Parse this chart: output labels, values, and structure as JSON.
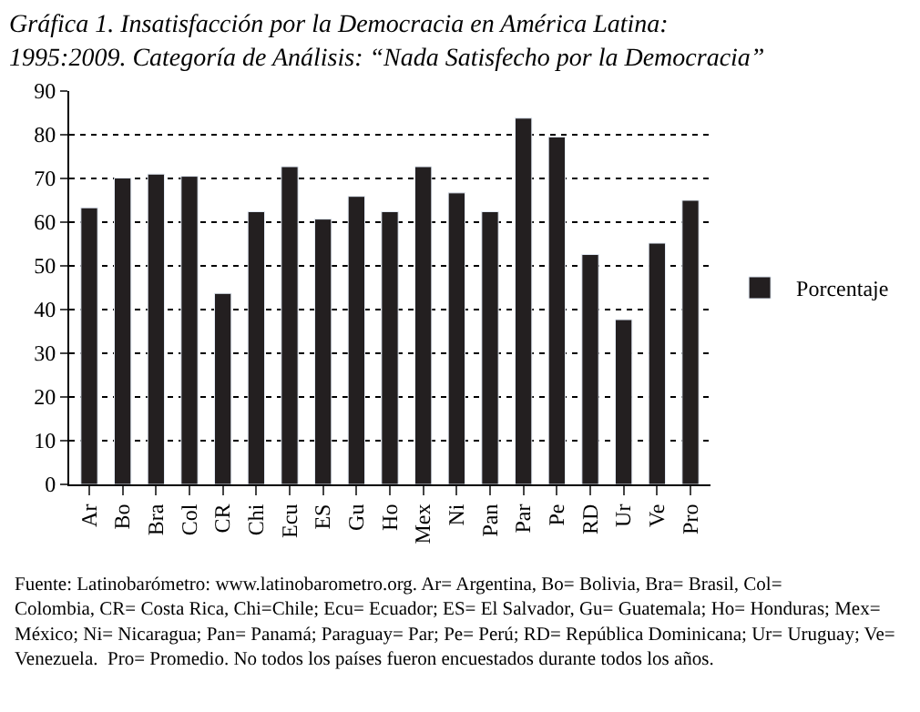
{
  "chart_data": {
    "type": "bar",
    "title": "Gráfica 1. Insatisfacción por la Democracia en América Latina: 1995:2009. Categoría de Análisis: “Nada Satisfecho por la Democracia”",
    "categories": [
      "Ar",
      "Bo",
      "Bra",
      "Col",
      "CR",
      "Chi",
      "Ecu",
      "ES",
      "Gu",
      "Ho",
      "Mex",
      "Ni",
      "Pan",
      "Par",
      "Pe",
      "RD",
      "Ur",
      "Ve",
      "Pro"
    ],
    "series": [
      {
        "name": "Porcentaje",
        "color": "#231f20",
        "values": [
          63.3,
          70.1,
          71,
          70.5,
          43.7,
          62.4,
          72.7,
          60.7,
          65.9,
          62.4,
          72.7,
          66.7,
          62.4,
          83.8,
          79.5,
          52.6,
          37.7,
          55.2,
          65.0
        ]
      }
    ],
    "ylim": [
      0,
      90
    ],
    "yticks": [
      0,
      10,
      20,
      30,
      40,
      50,
      60,
      70,
      80,
      90
    ],
    "grid": "y",
    "legend": "right",
    "annotations": [
      "Fuente: Latinobarómetro: www.latinobarometro.org. Ar= Argentina, Bo= Bolivia, Bra= Brasil, Col= Colombia, CR= Costa Rica, Chi=Chile; Ecu= Ecuador; ES= El Salvador, Gu= Guatemala; Ho= Honduras; Mex= México; Ni= Nicaragua; Pan= Panamá; Paraguay= Par; Pe= Perú; RD= República Dominicana; Ur= Uruguay; Ve= Venezuela.  Pro= Promedio. No todos los países fueron encuestados durante todos los años."
    ]
  }
}
